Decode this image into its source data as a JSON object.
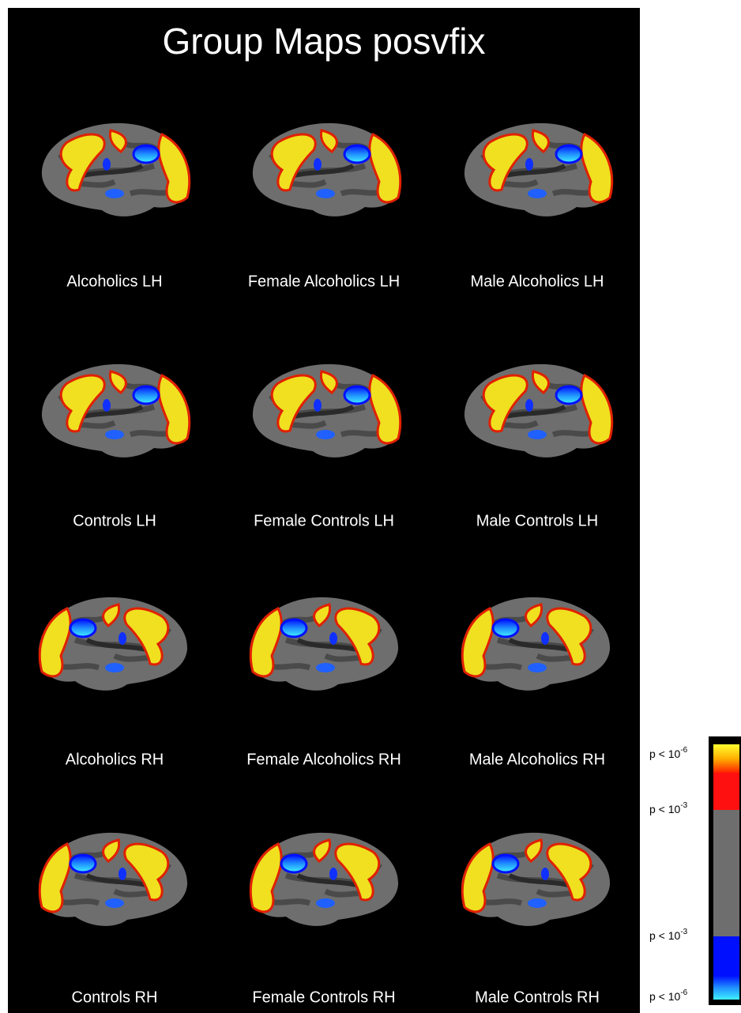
{
  "title": "Group Maps posvfix",
  "panels": [
    [
      "Alcoholics LH",
      "Female Alcoholics LH",
      "Male Alcoholics LH"
    ],
    [
      "Controls LH",
      "Female Controls LH",
      "Male Controls LH"
    ],
    [
      "Alcoholics RH",
      "Female Alcoholics RH",
      "Male Alcoholics RH"
    ],
    [
      "Controls RH",
      "Female Controls RH",
      "Male Controls RH"
    ]
  ],
  "colorbar": [
    {
      "base": "p < 10",
      "exponent": "-6"
    },
    {
      "base": "p < 10",
      "exponent": "-3"
    },
    {
      "base": "p < 10",
      "exponent": "-3"
    },
    {
      "base": "p < 10",
      "exponent": "-6"
    }
  ]
}
